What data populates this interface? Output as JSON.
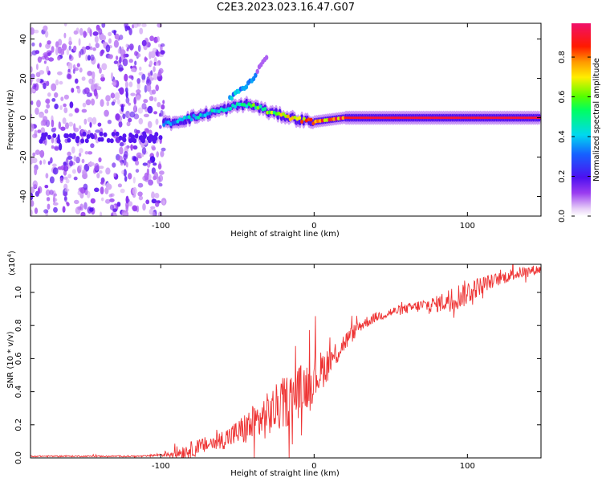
{
  "title": "C2E3.2023.023.16.47.G07",
  "colors": {
    "background": "#ffffff",
    "snr_line": "#ee3333",
    "axes": "#000000"
  },
  "chart_data": [
    {
      "type": "heatmap",
      "title": "",
      "xlabel": "Height of straight line (km)",
      "ylabel": "Frequency (Hz)",
      "xlim": [
        -185,
        148
      ],
      "ylim": [
        -50,
        48
      ],
      "xticks": [
        -100,
        0,
        100
      ],
      "yticks": [
        -40,
        -20,
        0,
        20,
        40
      ],
      "grid": false,
      "colorbar": {
        "label": "Normalized spectral amplitude",
        "range": [
          0.0,
          0.97
        ],
        "ticks": [
          "0.0",
          "0.2",
          "0.4",
          "0.6",
          "0.8"
        ],
        "colormap": "rainbow (violet → blue → cyan → green → yellow → red → magenta)"
      },
      "regions": [
        {
          "name": "noise",
          "x_range": [
            -185,
            -98
          ],
          "freq_range": [
            -50,
            48
          ],
          "amplitude": 0.15
        },
        {
          "name": "signal",
          "x_range": [
            -98,
            148
          ],
          "amplitude_range": [
            0.3,
            0.95
          ]
        }
      ],
      "ridge": {
        "x": [
          -98,
          -90,
          -80,
          -70,
          -60,
          -50,
          -45,
          -40,
          -35,
          -30,
          -20,
          -10,
          0,
          10,
          20,
          40,
          60,
          80,
          100,
          120,
          148
        ],
        "freq": [
          -3,
          -2,
          0,
          2,
          4,
          6,
          7,
          6,
          5,
          3,
          1,
          -1,
          -2,
          -1,
          0,
          0,
          0,
          0,
          0,
          0,
          0
        ],
        "amplitude": [
          0.35,
          0.4,
          0.45,
          0.45,
          0.5,
          0.55,
          0.55,
          0.6,
          0.6,
          0.65,
          0.7,
          0.8,
          0.85,
          0.9,
          0.92,
          0.95,
          0.95,
          0.95,
          0.95,
          0.95,
          0.95
        ]
      },
      "branch": {
        "x": [
          -55,
          -48,
          -42,
          -38,
          -35,
          -30
        ],
        "freq": [
          10,
          14,
          18,
          22,
          26,
          32
        ]
      }
    },
    {
      "type": "line",
      "title": "",
      "xlabel": "Height of straight line (km)",
      "ylabel": "SNR (10 * v/v)",
      "y_scale_label": "(x10",
      "y_scale_exponent": "4",
      "xlim": [
        -185,
        148
      ],
      "ylim": [
        0,
        1.17
      ],
      "xticks": [
        -100,
        0,
        100
      ],
      "yticks": [
        0.0,
        0.2,
        0.4,
        0.6,
        0.8,
        1.0
      ],
      "grid": false,
      "series": [
        {
          "x": [
            -185,
            -170,
            -150,
            -130,
            -110,
            -100,
            -90,
            -80,
            -70,
            -60,
            -50,
            -40,
            -30,
            -20,
            -10,
            0,
            10,
            20,
            30,
            40,
            50,
            60,
            70,
            80,
            90,
            100,
            110,
            120,
            130,
            140,
            148
          ],
          "y": [
            0.01,
            0.01,
            0.01,
            0.01,
            0.01,
            0.02,
            0.03,
            0.05,
            0.08,
            0.11,
            0.15,
            0.2,
            0.26,
            0.33,
            0.4,
            0.48,
            0.58,
            0.7,
            0.8,
            0.85,
            0.88,
            0.9,
            0.92,
            0.93,
            0.96,
            1.0,
            1.05,
            1.08,
            1.11,
            1.13,
            1.14
          ],
          "noise_amplitude": [
            0.004,
            0.004,
            0.004,
            0.004,
            0.005,
            0.01,
            0.04,
            0.05,
            0.05,
            0.06,
            0.08,
            0.12,
            0.14,
            0.16,
            0.16,
            0.14,
            0.1,
            0.06,
            0.04,
            0.03,
            0.03,
            0.03,
            0.04,
            0.05,
            0.08,
            0.08,
            0.05,
            0.04,
            0.04,
            0.03,
            0.03
          ]
        }
      ]
    }
  ]
}
